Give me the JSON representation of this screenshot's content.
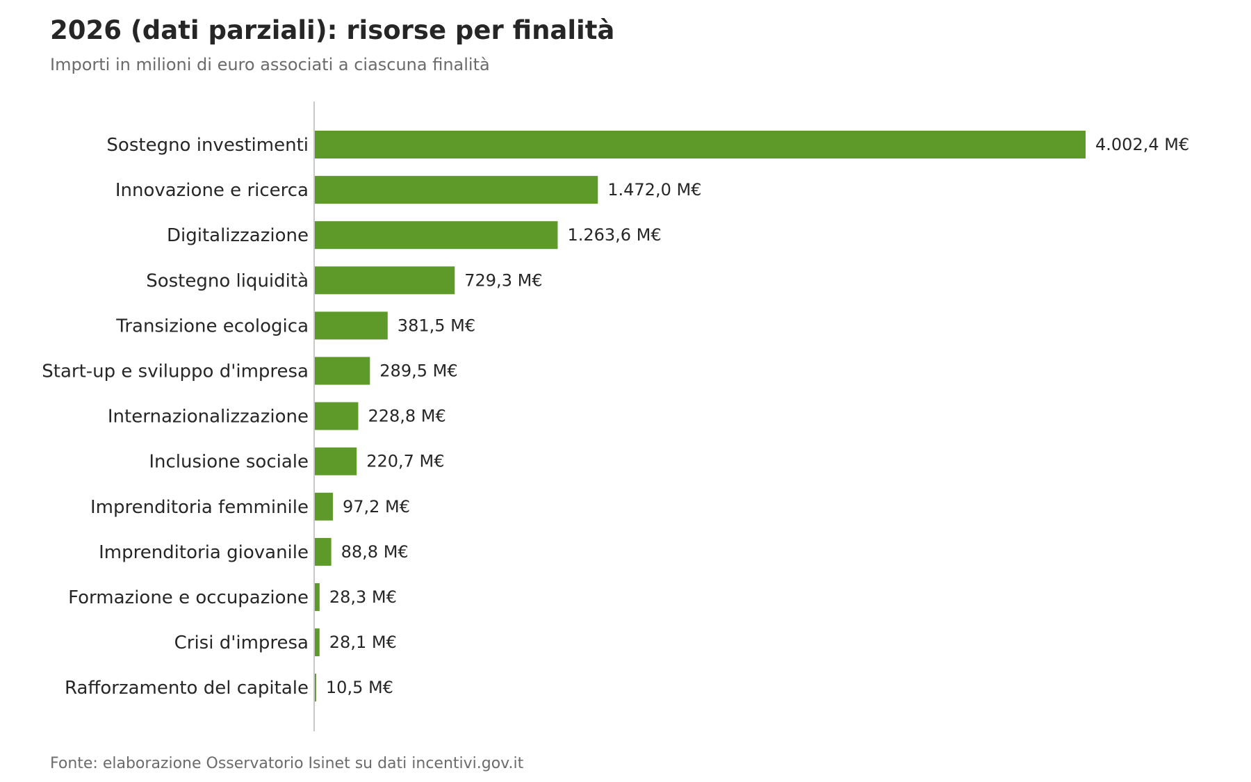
{
  "chart_data": {
    "type": "bar",
    "orientation": "horizontal",
    "title": "2026 (dati parziali): risorse per finalità",
    "subtitle": "Importi in milioni di euro associati a ciascuna finalità",
    "source": "Fonte: elaborazione Osservatorio Isinet su dati incentivi.gov.it",
    "categories": [
      "Sostegno investimenti",
      "Innovazione e ricerca",
      "Digitalizzazione",
      "Sostegno liquidità",
      "Transizione ecologica",
      "Start-up e sviluppo d'impresa",
      "Internazionalizzazione",
      "Inclusione sociale",
      "Imprenditoria femminile",
      "Imprenditoria giovanile",
      "Formazione e occupazione",
      "Crisi d'impresa",
      "Rafforzamento del capitale"
    ],
    "values": [
      4002.4,
      1472.0,
      1263.6,
      729.3,
      381.5,
      289.5,
      228.8,
      220.7,
      97.2,
      88.8,
      28.3,
      28.1,
      10.5
    ],
    "value_labels": [
      "4.002,4 M€",
      "1.472,0 M€",
      "1.263,6 M€",
      "729,3 M€",
      "381,5 M€",
      "289,5 M€",
      "228,8 M€",
      "220,7 M€",
      "97,2 M€",
      "88,8 M€",
      "28,3 M€",
      "28,1 M€",
      "10,5 M€"
    ],
    "xlim": [
      0,
      4002.4
    ],
    "grid": false,
    "legend": "none",
    "bar_color": "#5e9a2a",
    "axis_color": "#c8c8c8"
  }
}
